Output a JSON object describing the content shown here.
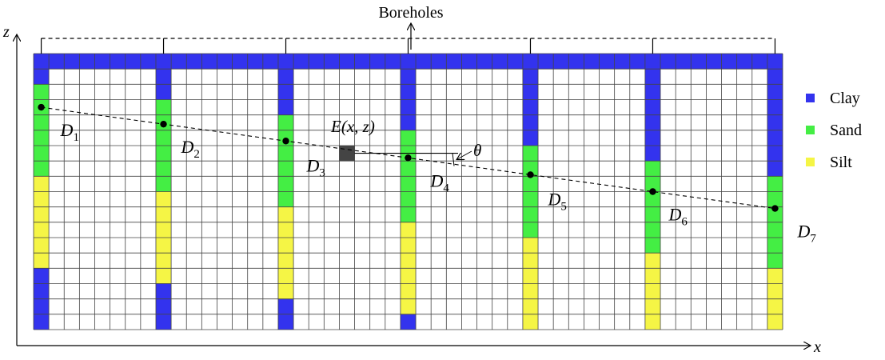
{
  "title": "Boreholes",
  "axes": {
    "x_label": "x",
    "z_label": "z"
  },
  "grid": {
    "columns": 47,
    "rows": 18
  },
  "colors": {
    "clay": "#3333ee",
    "sand": "#44ee44",
    "silt": "#f5f545",
    "cell_empty": "#ffffff",
    "grid_line": "#444444",
    "target_cell": "#444444"
  },
  "legend": [
    {
      "key": "clay",
      "label": "Clay"
    },
    {
      "key": "sand",
      "label": "Sand"
    },
    {
      "key": "silt",
      "label": "Silt"
    }
  ],
  "boreholes": [
    {
      "name": "D",
      "index": "1",
      "column": 0,
      "point_row": 3.5,
      "layers": [
        {
          "type": "clay",
          "rows": 2
        },
        {
          "type": "sand",
          "rows": 6
        },
        {
          "type": "silt",
          "rows": 6
        },
        {
          "type": "clay",
          "rows": 4
        }
      ]
    },
    {
      "name": "D",
      "index": "2",
      "column": 8,
      "point_row": 4.6,
      "layers": [
        {
          "type": "clay",
          "rows": 3
        },
        {
          "type": "sand",
          "rows": 6
        },
        {
          "type": "silt",
          "rows": 6
        },
        {
          "type": "clay",
          "rows": 3
        }
      ]
    },
    {
      "name": "D",
      "index": "3",
      "column": 16,
      "point_row": 5.7,
      "layers": [
        {
          "type": "clay",
          "rows": 4
        },
        {
          "type": "sand",
          "rows": 6
        },
        {
          "type": "silt",
          "rows": 6
        },
        {
          "type": "clay",
          "rows": 2
        }
      ]
    },
    {
      "name": "D",
      "index": "4",
      "column": 24,
      "point_row": 6.8,
      "layers": [
        {
          "type": "clay",
          "rows": 5
        },
        {
          "type": "sand",
          "rows": 6
        },
        {
          "type": "silt",
          "rows": 6
        },
        {
          "type": "clay",
          "rows": 1
        }
      ]
    },
    {
      "name": "D",
      "index": "5",
      "column": 32,
      "point_row": 7.9,
      "layers": [
        {
          "type": "clay",
          "rows": 6
        },
        {
          "type": "sand",
          "rows": 6
        },
        {
          "type": "silt",
          "rows": 6
        }
      ]
    },
    {
      "name": "D",
      "index": "6",
      "column": 40,
      "point_row": 9.0,
      "layers": [
        {
          "type": "clay",
          "rows": 7
        },
        {
          "type": "sand",
          "rows": 6
        },
        {
          "type": "silt",
          "rows": 5
        }
      ]
    },
    {
      "name": "D",
      "index": "7",
      "column": 48,
      "point_row": 10.1,
      "layers": [
        {
          "type": "clay",
          "rows": 8
        },
        {
          "type": "sand",
          "rows": 6
        },
        {
          "type": "silt",
          "rows": 4
        }
      ]
    }
  ],
  "target": {
    "label": "E(x, z)",
    "column": 20,
    "row": 6
  },
  "angle_label": "θ"
}
